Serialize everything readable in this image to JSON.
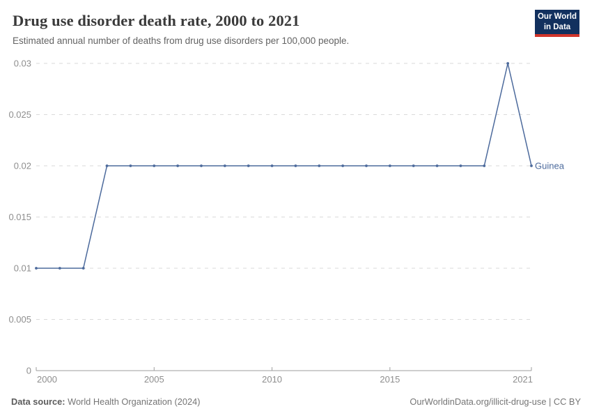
{
  "header": {
    "title": "Drug use disorder death rate, 2000 to 2021",
    "subtitle": "Estimated annual number of deaths from drug use disorders per 100,000 people.",
    "logo": {
      "line1": "Our World",
      "line2": "in Data",
      "bg_color": "#12305e",
      "bar_color": "#d1352b",
      "text_color": "#ffffff"
    }
  },
  "chart_data": {
    "type": "line",
    "title": "Drug use disorder death rate, 2000 to 2021",
    "subtitle": "Estimated annual number of deaths from drug use disorders per 100,000 people.",
    "xlabel": "",
    "ylabel": "",
    "xlim": [
      2000,
      2021
    ],
    "ylim": [
      0,
      0.03
    ],
    "grid": "horizontal-dashed",
    "legend_position": "end-of-line-label",
    "x": [
      2000,
      2001,
      2002,
      2003,
      2004,
      2005,
      2006,
      2007,
      2008,
      2009,
      2010,
      2011,
      2012,
      2013,
      2014,
      2015,
      2016,
      2017,
      2018,
      2019,
      2020,
      2021
    ],
    "series": [
      {
        "name": "Guinea",
        "color": "#4c6a9c",
        "values": [
          0.01,
          0.01,
          0.01,
          0.02,
          0.02,
          0.02,
          0.02,
          0.02,
          0.02,
          0.02,
          0.02,
          0.02,
          0.02,
          0.02,
          0.02,
          0.02,
          0.02,
          0.02,
          0.02,
          0.02,
          0.03,
          0.02
        ]
      }
    ],
    "x_ticks": [
      2000,
      2005,
      2010,
      2015,
      2021
    ],
    "y_ticks": [
      {
        "value": 0,
        "label": "0"
      },
      {
        "value": 0.005,
        "label": "0.005"
      },
      {
        "value": 0.01,
        "label": "0.01"
      },
      {
        "value": 0.015,
        "label": "0.015"
      },
      {
        "value": 0.02,
        "label": "0.02"
      },
      {
        "value": 0.025,
        "label": "0.025"
      },
      {
        "value": 0.03,
        "label": "0.03"
      }
    ],
    "grid_color": "#dadada",
    "axis_color": "#9e9e9e",
    "tick_label_color": "#8e8e8e"
  },
  "footer": {
    "source_label": "Data source:",
    "source_value": "World Health Organization (2024)",
    "credit": "OurWorldinData.org/illicit-drug-use | CC BY"
  }
}
